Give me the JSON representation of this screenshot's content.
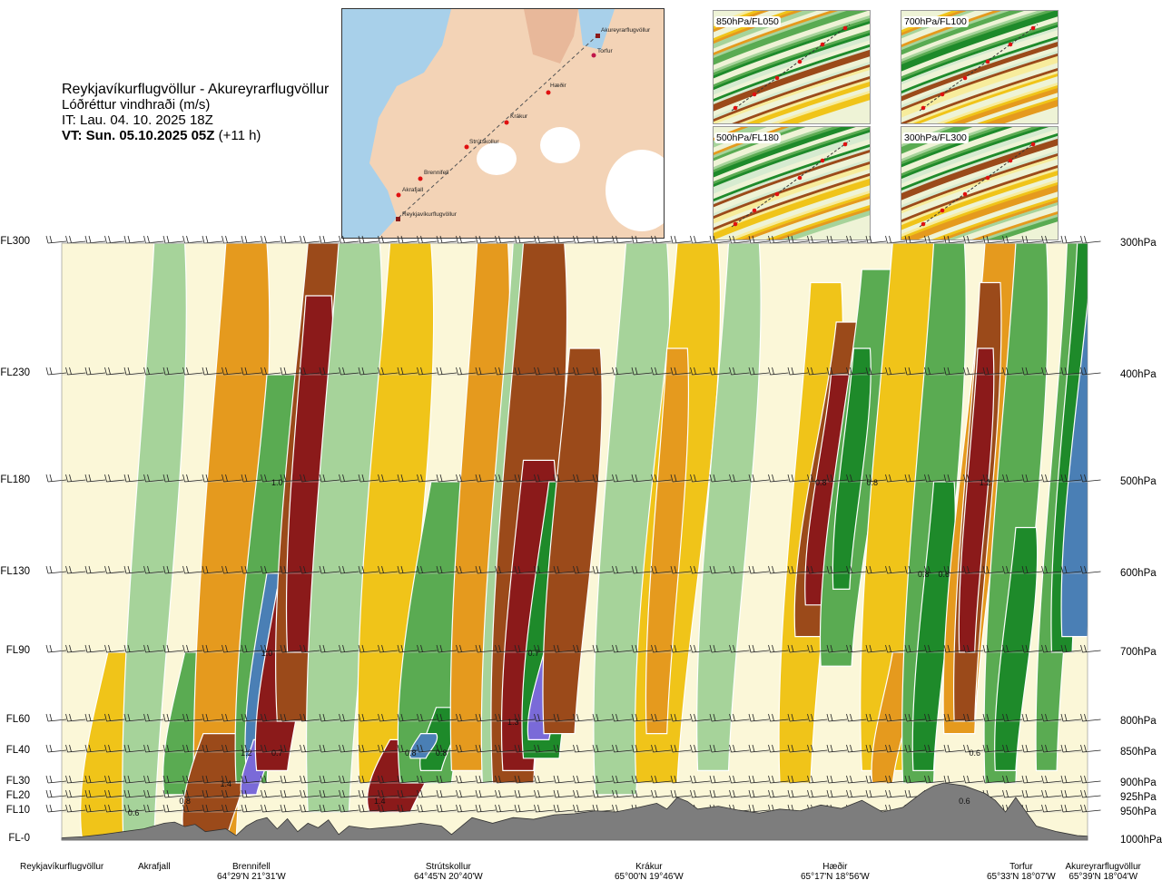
{
  "header": {
    "route": "Reykjavíkurflugvöllur - Akureyrarflugvöllur",
    "subtitle": "Lóðréttur vindhraði (m/s)",
    "issue": "IT: Lau. 04. 10. 2025 18Z",
    "valid": "VT: Sun. 05.10.2025 05Z",
    "valid_offset": "(+11 h)"
  },
  "inset_map": {
    "waypoints": [
      "Akureyrarflugvöllur",
      "Torfur",
      "Hæðir",
      "Krákur",
      "Strútskollur",
      "Brennifell",
      "Akrafjall",
      "Reykjavíkurflugvöllur"
    ]
  },
  "level_panels": [
    "850hPa/FL050",
    "700hPa/FL100",
    "500hPa/FL180",
    "300hPa/FL300"
  ],
  "chart_data": {
    "type": "heatmap",
    "variable": "Lóðréttur vindhraði (m/s)",
    "y_left_ticks": [
      "FL300",
      "FL230",
      "FL180",
      "FL130",
      "FL90",
      "FL60",
      "FL40",
      "FL30",
      "FL20",
      "FL10",
      "FL-0"
    ],
    "y_right_ticks": [
      "300hPa",
      "400hPa",
      "500hPa",
      "600hPa",
      "700hPa",
      "800hPa",
      "850hPa",
      "900hPa",
      "925hPa",
      "950hPa",
      "1000hPa"
    ],
    "ylim_hpa": [
      1000,
      300
    ],
    "x_stations": [
      {
        "name": "Reykjavíkurflugvöllur",
        "coord": ""
      },
      {
        "name": "Akrafjall",
        "coord": ""
      },
      {
        "name": "Brennifell",
        "coord": "64°29'N 21°31'W"
      },
      {
        "name": "Strútskollur",
        "coord": "64°45'N 20°40'W"
      },
      {
        "name": "Krákur",
        "coord": "65°00'N 19°46'W"
      },
      {
        "name": "Hæðir",
        "coord": "65°17'N 18°56'W"
      },
      {
        "name": "Torfur",
        "coord": "65°33'N 18°07'W"
      },
      {
        "name": "Akureyrarflugvöllur",
        "coord": "65°39'N 18°04'W"
      }
    ],
    "labeled_extremes": [
      {
        "value": "1.0",
        "x": 0.21,
        "hpa": 500
      },
      {
        "value": "1.0",
        "x": 0.2,
        "hpa": 700
      },
      {
        "value": "1.2",
        "x": 0.18,
        "hpa": 850
      },
      {
        "value": "0.7",
        "x": 0.21,
        "hpa": 850
      },
      {
        "value": "1.4",
        "x": 0.16,
        "hpa": 900
      },
      {
        "value": "0.8",
        "x": 0.12,
        "hpa": 930
      },
      {
        "value": "0.6",
        "x": 0.07,
        "hpa": 950
      },
      {
        "value": "1.4",
        "x": 0.31,
        "hpa": 930
      },
      {
        "value": "0.8",
        "x": 0.34,
        "hpa": 850
      },
      {
        "value": "0.8",
        "x": 0.37,
        "hpa": 850
      },
      {
        "value": "1.3",
        "x": 0.44,
        "hpa": 800
      },
      {
        "value": "0.7",
        "x": 0.46,
        "hpa": 700
      },
      {
        "value": "0.8",
        "x": 0.74,
        "hpa": 500
      },
      {
        "value": "0.8",
        "x": 0.79,
        "hpa": 500
      },
      {
        "value": "1.2",
        "x": 0.9,
        "hpa": 500
      },
      {
        "value": "0.8",
        "x": 0.84,
        "hpa": 600
      },
      {
        "value": "0.6",
        "x": 0.86,
        "hpa": 600
      },
      {
        "value": "0.6",
        "x": 0.89,
        "hpa": 850
      },
      {
        "value": "0.6",
        "x": 0.88,
        "hpa": 930
      }
    ],
    "grid": true
  },
  "colors": {
    "strong_up": "#8b1a1a",
    "up2": "#9b4a1a",
    "up1": "#e59a1e",
    "up0": "#f0c419",
    "weak_up": "#f7ec9c",
    "neutral": "#fbf7d8",
    "weak_down": "#d6ebd0",
    "down1": "#a6d39a",
    "down2": "#5aab52",
    "down3": "#1e8a2a",
    "strong_down": "#4a7fb5",
    "extreme_down": "#7a6ad8",
    "terrain": "#7d7d7d"
  }
}
